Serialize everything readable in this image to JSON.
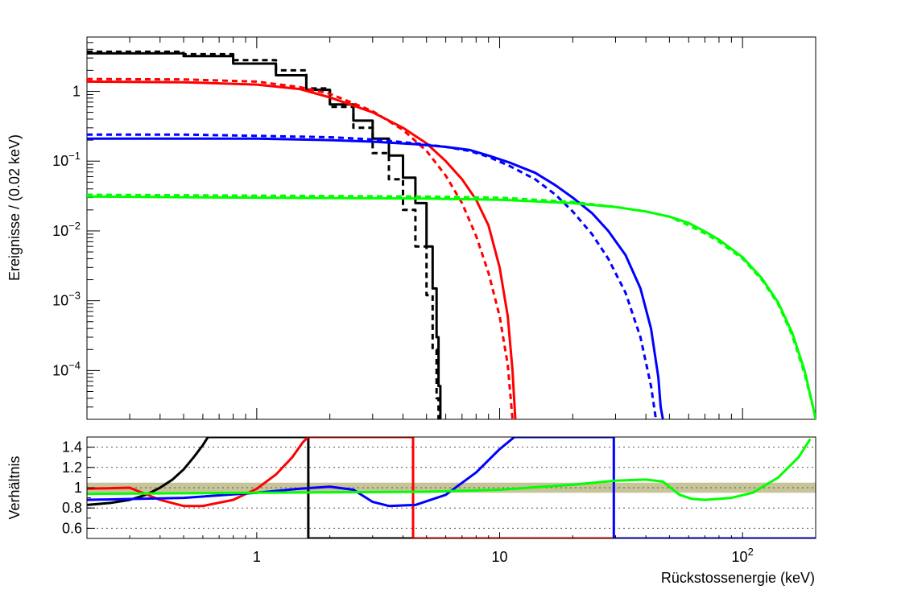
{
  "chart_data": [
    {
      "type": "line",
      "ylabel": "Ereignisse / (0.02 keV)",
      "xscale": "log",
      "yscale": "log",
      "xlim": [
        0.2,
        200
      ],
      "ylim": [
        2e-05,
        6
      ],
      "y_tick_labels": [
        "10^{-4}",
        "10^{-3}",
        "10^{-2}",
        "10^{-1}",
        "1"
      ],
      "y_tick_values": [
        0.0001,
        0.001,
        0.01,
        0.1,
        1
      ],
      "grid": false,
      "legend": "none",
      "series": [
        {
          "color": "#000000",
          "style": "step-solid",
          "x": [
            0.2,
            0.3,
            0.5,
            0.8,
            1.2,
            1.6,
            2.0,
            2.5,
            3.0,
            3.5,
            4.0,
            4.5,
            5.0,
            5.3,
            5.5,
            5.6,
            5.7
          ],
          "y": [
            3.5,
            3.5,
            3.2,
            2.5,
            1.7,
            1.05,
            0.65,
            0.38,
            0.21,
            0.12,
            0.058,
            0.025,
            0.006,
            0.0015,
            0.0003,
            6e-05,
            2e-05
          ]
        },
        {
          "color": "#000000",
          "style": "step-dashed",
          "x": [
            0.2,
            0.3,
            0.5,
            0.8,
            1.2,
            1.6,
            2.0,
            2.5,
            3.0,
            3.5,
            4.0,
            4.5,
            5.0,
            5.3,
            5.5,
            5.6
          ],
          "y": [
            3.7,
            3.7,
            3.4,
            2.8,
            2.0,
            1.1,
            0.6,
            0.3,
            0.13,
            0.055,
            0.02,
            0.006,
            0.0012,
            0.0002,
            4e-05,
            2e-05
          ]
        },
        {
          "color": "#ff0000",
          "style": "solid",
          "x": [
            0.2,
            0.5,
            1.0,
            1.5,
            2.0,
            3.0,
            4.0,
            5.0,
            6.0,
            7.0,
            8.0,
            9.0,
            10.0,
            10.8,
            11.3,
            11.6
          ],
          "y": [
            1.38,
            1.35,
            1.25,
            1.08,
            0.82,
            0.5,
            0.3,
            0.18,
            0.1,
            0.055,
            0.028,
            0.012,
            0.003,
            0.0006,
            0.0001,
            2e-05
          ]
        },
        {
          "color": "#ff0000",
          "style": "dashed",
          "x": [
            0.2,
            0.5,
            1.0,
            1.5,
            2.0,
            3.0,
            4.0,
            5.0,
            6.0,
            7.0,
            8.0,
            9.0,
            10.0,
            10.8,
            11.3
          ],
          "y": [
            1.5,
            1.48,
            1.38,
            1.15,
            0.92,
            0.52,
            0.28,
            0.14,
            0.062,
            0.025,
            0.0085,
            0.0025,
            0.0006,
            0.00012,
            2e-05
          ]
        },
        {
          "color": "#0000ff",
          "style": "solid",
          "x": [
            0.2,
            0.5,
            1.0,
            2.0,
            3.0,
            4.5,
            6.0,
            7.5,
            9.0,
            11,
            14,
            17,
            20,
            24,
            28,
            33,
            38,
            42,
            45,
            46,
            47
          ],
          "y": [
            0.21,
            0.21,
            0.21,
            0.2,
            0.19,
            0.175,
            0.16,
            0.145,
            0.12,
            0.095,
            0.068,
            0.045,
            0.03,
            0.018,
            0.01,
            0.0045,
            0.0015,
            0.0004,
            8e-05,
            3e-05,
            2e-05
          ]
        },
        {
          "color": "#0000ff",
          "style": "dashed",
          "x": [
            0.2,
            0.5,
            1.0,
            2.0,
            3.0,
            4.5,
            6.0,
            7.5,
            9.0,
            11,
            14,
            17,
            20,
            24,
            28,
            33,
            38,
            42,
            44
          ],
          "y": [
            0.24,
            0.24,
            0.23,
            0.22,
            0.205,
            0.18,
            0.16,
            0.14,
            0.115,
            0.085,
            0.055,
            0.033,
            0.019,
            0.009,
            0.004,
            0.0013,
            0.0003,
            6e-05,
            2e-05
          ]
        },
        {
          "color": "#00ff00",
          "style": "solid",
          "x": [
            0.2,
            1.0,
            5.0,
            10,
            20,
            30,
            40,
            50,
            60,
            70,
            80,
            100,
            120,
            140,
            160,
            180,
            195,
            200
          ],
          "y": [
            0.031,
            0.03,
            0.029,
            0.028,
            0.025,
            0.022,
            0.019,
            0.016,
            0.013,
            0.0098,
            0.0075,
            0.0042,
            0.0021,
            0.00095,
            0.00035,
            0.0001,
            3e-05,
            2e-05
          ]
        },
        {
          "color": "#00ff00",
          "style": "dashed",
          "x": [
            0.2,
            1.0,
            5.0,
            10,
            20,
            30,
            40,
            50,
            60,
            70,
            80,
            100,
            120,
            140,
            160,
            180,
            195,
            200
          ],
          "y": [
            0.033,
            0.032,
            0.031,
            0.03,
            0.026,
            0.022,
            0.019,
            0.016,
            0.012,
            0.0092,
            0.007,
            0.004,
            0.002,
            0.0009,
            0.00032,
            9e-05,
            3e-05,
            2e-05
          ]
        }
      ]
    },
    {
      "type": "line",
      "xlabel": "Rückstossenergie (keV)",
      "ylabel": "Verhältnis",
      "xscale": "log",
      "yscale": "linear",
      "xlim": [
        0.2,
        200
      ],
      "ylim": [
        0.5,
        1.5
      ],
      "x_tick_labels": [
        "1",
        "10",
        "10^{2}"
      ],
      "x_tick_values": [
        1,
        10,
        100
      ],
      "y_tick_labels": [
        "0.6",
        "0.8",
        "1",
        "1.2",
        "1.4"
      ],
      "y_tick_values": [
        0.6,
        0.8,
        1.0,
        1.2,
        1.4
      ],
      "grid": "horizontal dotted",
      "band": {
        "color": "#c8c49a",
        "y_range": [
          0.95,
          1.05
        ]
      },
      "series": [
        {
          "color": "#000000",
          "x": [
            0.2,
            0.25,
            0.3,
            0.35,
            0.4,
            0.45,
            0.5,
            0.55,
            0.6,
            0.63,
            1.63,
            1.63,
            200
          ],
          "y": [
            0.83,
            0.85,
            0.88,
            0.93,
            1.0,
            1.08,
            1.18,
            1.3,
            1.42,
            1.5,
            1.5,
            0.5,
            0.5
          ]
        },
        {
          "color": "#ff0000",
          "x": [
            0.2,
            0.3,
            0.4,
            0.5,
            0.6,
            0.8,
            1.0,
            1.2,
            1.4,
            1.55,
            1.63,
            4.4,
            4.4,
            200
          ],
          "y": [
            0.99,
            1.0,
            0.88,
            0.82,
            0.82,
            0.88,
            0.99,
            1.13,
            1.3,
            1.45,
            1.5,
            1.5,
            0.5,
            0.5
          ]
        },
        {
          "color": "#0000ff",
          "x": [
            0.2,
            0.5,
            1.0,
            1.5,
            2.0,
            2.5,
            3.0,
            3.5,
            4.5,
            6.0,
            8.0,
            10.0,
            11.5,
            12.5,
            29.5,
            29.5,
            200
          ],
          "y": [
            0.88,
            0.9,
            0.95,
            0.99,
            1.01,
            0.98,
            0.86,
            0.82,
            0.83,
            0.93,
            1.15,
            1.38,
            1.5,
            1.5,
            1.5,
            0.5,
            0.5
          ]
        },
        {
          "color": "#00ff00",
          "x": [
            0.2,
            1.0,
            5.0,
            10,
            20,
            30,
            40,
            47,
            55,
            62,
            70,
            90,
            110,
            140,
            170,
            190
          ],
          "y": [
            0.94,
            0.95,
            0.96,
            0.98,
            1.03,
            1.07,
            1.08,
            1.06,
            0.93,
            0.89,
            0.88,
            0.9,
            0.95,
            1.1,
            1.3,
            1.48
          ]
        }
      ]
    }
  ]
}
